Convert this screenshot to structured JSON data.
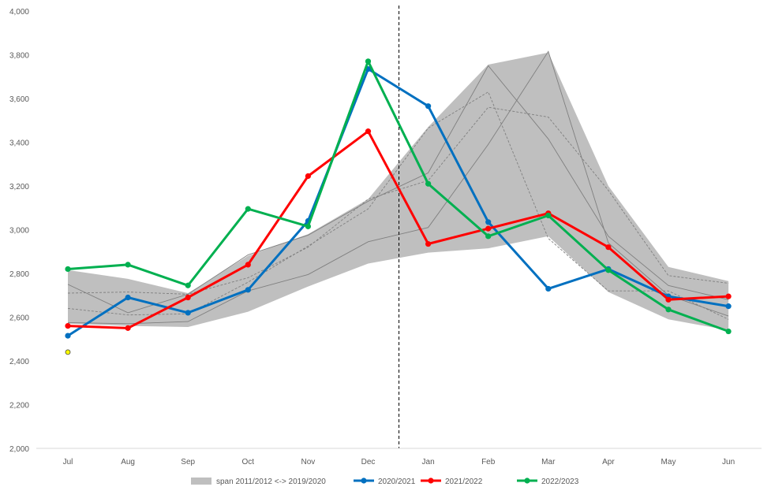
{
  "chart_data": {
    "type": "line",
    "categories": [
      "Jul",
      "Aug",
      "Sep",
      "Oct",
      "Nov",
      "Dec",
      "Jan",
      "Feb",
      "Mar",
      "Apr",
      "May",
      "Jun"
    ],
    "ylim": [
      2000,
      4000
    ],
    "yticks": [
      2000,
      2200,
      2400,
      2600,
      2800,
      3000,
      3200,
      3400,
      3600,
      3800,
      4000
    ],
    "ytick_labels": [
      "2,000",
      "2,200",
      "2,400",
      "2,600",
      "2,800",
      "3,000",
      "3,200",
      "3,400",
      "3,600",
      "3,800",
      "4,000"
    ],
    "grid": false,
    "legend_position": "bottom",
    "divider_between": [
      "Dec",
      "Jan"
    ],
    "span": {
      "name": "span 2011/2012 <-> 2019/2020",
      "color": "#bfbfbf",
      "low": [
        2570,
        2560,
        2555,
        2625,
        2740,
        2845,
        2895,
        2915,
        2970,
        2715,
        2590,
        2540
      ],
      "high": [
        2815,
        2775,
        2710,
        2880,
        2980,
        3140,
        3470,
        3755,
        3810,
        3200,
        2830,
        2765
      ]
    },
    "background_lines": [
      {
        "style": "solid",
        "values": [
          2750,
          2620,
          2705,
          2885,
          2975,
          3130,
          3260,
          3750,
          3415,
          2970,
          2745,
          2680
        ]
      },
      {
        "style": "solid",
        "values": [
          2575,
          2570,
          2580,
          2720,
          2795,
          2945,
          3010,
          3390,
          3815,
          2940,
          2700,
          2605
        ]
      },
      {
        "style": "dashed",
        "values": [
          2710,
          2715,
          2705,
          2780,
          2920,
          3140,
          3225,
          3560,
          3515,
          3180,
          2790,
          2755
        ]
      },
      {
        "style": "dashed",
        "values": [
          2640,
          2610,
          2615,
          2760,
          2925,
          3095,
          3465,
          3630,
          2960,
          2720,
          2720,
          2590
        ]
      }
    ],
    "series": [
      {
        "name": "2020/2021",
        "color": "#0070c0",
        "values": [
          2515,
          2690,
          2620,
          2725,
          3040,
          3735,
          3565,
          3035,
          2730,
          2820,
          2695,
          2650
        ]
      },
      {
        "name": "2021/2022",
        "color": "#ff0000",
        "values": [
          2560,
          2550,
          2690,
          2840,
          3245,
          3450,
          2935,
          3005,
          3075,
          2920,
          2680,
          2695
        ]
      },
      {
        "name": "2022/2023",
        "color": "#00b050",
        "values": [
          2820,
          2840,
          2745,
          3095,
          3015,
          3770,
          3210,
          2970,
          3065,
          2815,
          2635,
          2535
        ]
      }
    ],
    "extra_point": {
      "category": "Jul",
      "value": 2440,
      "color": "#ffff00"
    }
  }
}
